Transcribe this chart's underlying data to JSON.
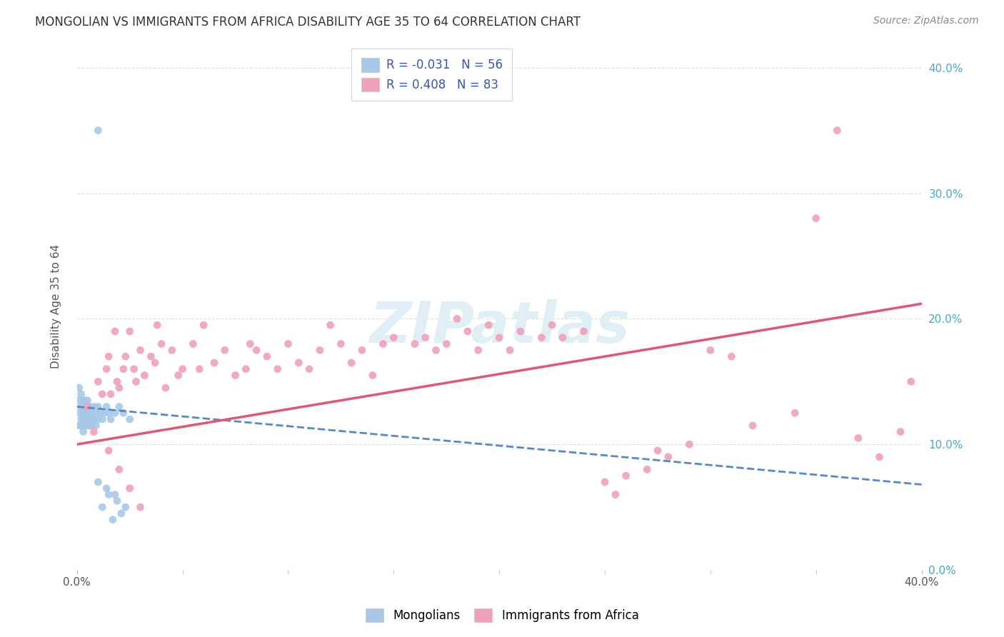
{
  "title": "MONGOLIAN VS IMMIGRANTS FROM AFRICA DISABILITY AGE 35 TO 64 CORRELATION CHART",
  "source": "Source: ZipAtlas.com",
  "ylabel": "Disability Age 35 to 64",
  "xlim": [
    0.0,
    0.4
  ],
  "ylim": [
    0.0,
    0.42
  ],
  "mongolian_R": -0.031,
  "mongolian_N": 56,
  "africa_R": 0.408,
  "africa_N": 83,
  "mongolian_color": "#a8c8e8",
  "africa_color": "#f0a0b8",
  "mongolian_line_color": "#5588cc",
  "africa_line_color": "#e05878",
  "legend_text_color": "#3355bb",
  "background_color": "#ffffff",
  "grid_color": "#dddddd",
  "watermark": "ZIPatlas",
  "mong_x": [
    0.001,
    0.001,
    0.001,
    0.001,
    0.002,
    0.002,
    0.002,
    0.002,
    0.002,
    0.003,
    0.003,
    0.003,
    0.003,
    0.003,
    0.003,
    0.004,
    0.004,
    0.004,
    0.004,
    0.005,
    0.005,
    0.005,
    0.005,
    0.005,
    0.006,
    0.006,
    0.006,
    0.007,
    0.007,
    0.007,
    0.008,
    0.008,
    0.009,
    0.009,
    0.01,
    0.01,
    0.011,
    0.012,
    0.013,
    0.014,
    0.015,
    0.016,
    0.018,
    0.02,
    0.022,
    0.025,
    0.012,
    0.015,
    0.017,
    0.019,
    0.021,
    0.023,
    0.018,
    0.014,
    0.01,
    0.01
  ],
  "mong_y": [
    0.125,
    0.135,
    0.115,
    0.145,
    0.13,
    0.12,
    0.115,
    0.13,
    0.14,
    0.125,
    0.135,
    0.115,
    0.12,
    0.13,
    0.11,
    0.125,
    0.135,
    0.115,
    0.12,
    0.13,
    0.12,
    0.115,
    0.125,
    0.135,
    0.125,
    0.115,
    0.13,
    0.12,
    0.125,
    0.115,
    0.13,
    0.12,
    0.115,
    0.125,
    0.12,
    0.13,
    0.125,
    0.12,
    0.125,
    0.13,
    0.125,
    0.12,
    0.125,
    0.13,
    0.125,
    0.12,
    0.05,
    0.06,
    0.04,
    0.055,
    0.045,
    0.05,
    0.06,
    0.065,
    0.07,
    0.35
  ],
  "afr_x": [
    0.005,
    0.008,
    0.01,
    0.012,
    0.014,
    0.015,
    0.016,
    0.018,
    0.019,
    0.02,
    0.022,
    0.023,
    0.025,
    0.027,
    0.028,
    0.03,
    0.032,
    0.035,
    0.037,
    0.038,
    0.04,
    0.042,
    0.045,
    0.048,
    0.05,
    0.055,
    0.058,
    0.06,
    0.065,
    0.07,
    0.075,
    0.08,
    0.082,
    0.085,
    0.09,
    0.095,
    0.1,
    0.105,
    0.11,
    0.115,
    0.12,
    0.125,
    0.13,
    0.135,
    0.14,
    0.145,
    0.15,
    0.16,
    0.165,
    0.17,
    0.175,
    0.18,
    0.185,
    0.19,
    0.195,
    0.2,
    0.205,
    0.21,
    0.22,
    0.225,
    0.23,
    0.24,
    0.25,
    0.255,
    0.26,
    0.27,
    0.275,
    0.28,
    0.29,
    0.3,
    0.31,
    0.32,
    0.34,
    0.35,
    0.36,
    0.37,
    0.38,
    0.39,
    0.395,
    0.015,
    0.02,
    0.025,
    0.03
  ],
  "afr_y": [
    0.13,
    0.11,
    0.15,
    0.14,
    0.16,
    0.17,
    0.14,
    0.19,
    0.15,
    0.145,
    0.16,
    0.17,
    0.19,
    0.16,
    0.15,
    0.175,
    0.155,
    0.17,
    0.165,
    0.195,
    0.18,
    0.145,
    0.175,
    0.155,
    0.16,
    0.18,
    0.16,
    0.195,
    0.165,
    0.175,
    0.155,
    0.16,
    0.18,
    0.175,
    0.17,
    0.16,
    0.18,
    0.165,
    0.16,
    0.175,
    0.195,
    0.18,
    0.165,
    0.175,
    0.155,
    0.18,
    0.185,
    0.18,
    0.185,
    0.175,
    0.18,
    0.2,
    0.19,
    0.175,
    0.195,
    0.185,
    0.175,
    0.19,
    0.185,
    0.195,
    0.185,
    0.19,
    0.07,
    0.06,
    0.075,
    0.08,
    0.095,
    0.09,
    0.1,
    0.175,
    0.17,
    0.115,
    0.125,
    0.28,
    0.35,
    0.105,
    0.09,
    0.11,
    0.15,
    0.095,
    0.08,
    0.065,
    0.05
  ]
}
